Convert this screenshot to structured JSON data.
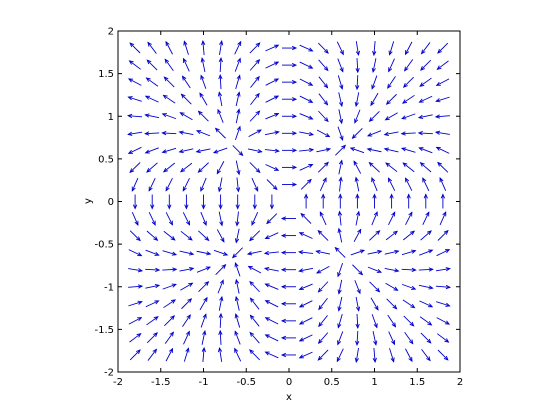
{
  "chart_data": {
    "type": "quiver",
    "title": "",
    "xlabel": "x",
    "ylabel": "y",
    "xlim": [
      -2,
      2
    ],
    "ylim": [
      -2,
      2
    ],
    "xticks": [
      -2,
      -1.5,
      -1,
      -0.5,
      0,
      0.5,
      1,
      1.5,
      2
    ],
    "yticks": [
      -2,
      -1.5,
      -1,
      -0.5,
      0,
      0.5,
      1,
      1.5,
      2
    ],
    "xtick_labels": [
      "-2",
      "-1.5",
      "-1",
      "-0.5",
      "0",
      "0.5",
      "1",
      "1.5",
      "2"
    ],
    "ytick_labels": [
      "-2",
      "-1.5",
      "-1",
      "-0.5",
      "0",
      "0.5",
      "1",
      "1.5",
      "2"
    ],
    "grid": false,
    "arrow_color": "#0000cc",
    "grid_spacing": 0.2,
    "sample_range": [
      -1.8,
      1.8
    ],
    "charges": [
      {
        "x": -0.65,
        "y": 0.65,
        "q": 1
      },
      {
        "x": 0.65,
        "y": 0.65,
        "q": -1
      },
      {
        "x": -0.65,
        "y": -0.65,
        "q": -1
      },
      {
        "x": 0.65,
        "y": -0.65,
        "q": 1
      }
    ]
  }
}
